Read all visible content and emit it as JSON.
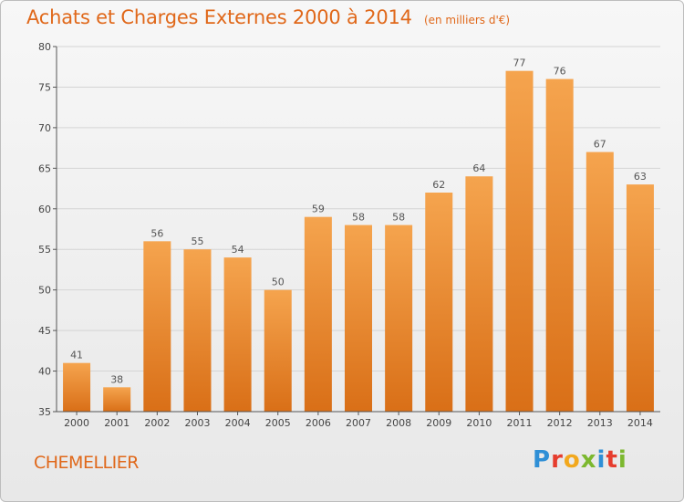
{
  "header": {
    "title": "Achats et Charges Externes 2000 à 2014",
    "subtitle": "(en milliers d'€)"
  },
  "footer": {
    "commune": "CHEMELLIER",
    "logo_letters": [
      "P",
      "r",
      "o",
      "x",
      "i",
      "t",
      "i"
    ]
  },
  "colors": {
    "bar_light": "#f5a44e",
    "bar_dark": "#d96f17",
    "title": "#e0681a",
    "grid": "#d4d4d4",
    "axis": "#555555"
  },
  "chart_data": {
    "type": "bar",
    "title": "Achats et Charges Externes 2000 à 2014",
    "subtitle": "(en milliers d'€)",
    "categories": [
      "2000",
      "2001",
      "2002",
      "2003",
      "2004",
      "2005",
      "2006",
      "2007",
      "2008",
      "2009",
      "2010",
      "2011",
      "2012",
      "2013",
      "2014"
    ],
    "values": [
      41,
      38,
      56,
      55,
      54,
      50,
      59,
      58,
      58,
      62,
      64,
      77,
      76,
      67,
      63
    ],
    "ylim": [
      35,
      80
    ],
    "yticks": [
      35,
      40,
      45,
      50,
      55,
      60,
      65,
      70,
      75,
      80
    ],
    "grid": true,
    "data_labels": true,
    "xlabel": "",
    "ylabel": ""
  }
}
